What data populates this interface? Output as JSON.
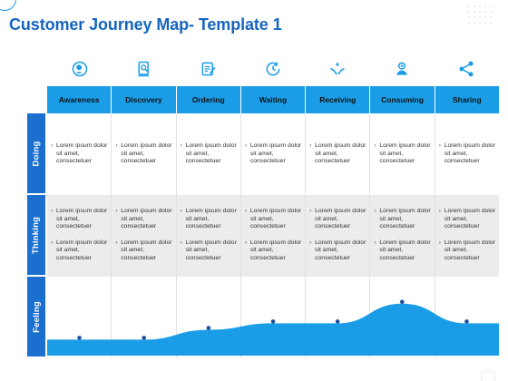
{
  "title": "Customer Journey Map- Template 1",
  "colors": {
    "accent": "#1a9de6",
    "title": "#1565c0",
    "row_label": "#1a6fcf",
    "thinking_bg": "#ececec"
  },
  "stages": [
    {
      "label": "Awareness",
      "icon": "idea-head-icon"
    },
    {
      "label": "Discovery",
      "icon": "document-search-icon"
    },
    {
      "label": "Ordering",
      "icon": "clipboard-edit-icon"
    },
    {
      "label": "Waiting",
      "icon": "clock-refresh-icon"
    },
    {
      "label": "Receiving",
      "icon": "hands-receive-icon"
    },
    {
      "label": "Consuming",
      "icon": "user-gear-icon"
    },
    {
      "label": "Sharing",
      "icon": "share-icon"
    }
  ],
  "rows": {
    "doing": {
      "label": "Doing",
      "cells": [
        [
          "Lorem ipsum dolor sit amet, consectetuer"
        ],
        [
          "Lorem ipsum dolor sit amet, consectetuer"
        ],
        [
          "Lorem ipsum dolor sit amet, consectetuer"
        ],
        [
          "Lorem ipsum dolor sit amet, consectetuer"
        ],
        [
          "Lorem ipsum dolor sit amet, consectetuer"
        ],
        [
          "Lorem ipsum dolor sit amet, consectetuer"
        ],
        [
          "Lorem ipsum dolor sit amet, consectetuer"
        ]
      ]
    },
    "thinking": {
      "label": "Thinking",
      "cells": [
        [
          "Lorem ipsum dolor sit amet, consectetuer",
          "Lorem ipsum dolor sit amet, consectetuer"
        ],
        [
          "Lorem ipsum dolor sit amet, consectetuer",
          "Lorem ipsum dolor sit amet, consectetuer"
        ],
        [
          "Lorem ipsum dolor sit amet, consectetuer",
          "Lorem ipsum dolor sit amet, consectetuer"
        ],
        [
          "Lorem ipsum dolor sit amet, consectetuer",
          "Lorem ipsum dolor sit amet, consectetuer"
        ],
        [
          "Lorem ipsum dolor sit amet, consectetuer",
          "Lorem ipsum dolor sit amet, consectetuer"
        ],
        [
          "Lorem ipsum dolor sit amet, consectetuer",
          "Lorem ipsum dolor sit amet, consectetuer"
        ],
        [
          "Lorem ipsum dolor sit amet, consectetuer",
          "Lorem ipsum dolor sit amet, consectetuer"
        ]
      ]
    },
    "feeling": {
      "label": "Feeling",
      "levels": [
        0.05,
        0.05,
        0.2,
        0.3,
        0.3,
        0.6,
        0.3
      ]
    }
  }
}
